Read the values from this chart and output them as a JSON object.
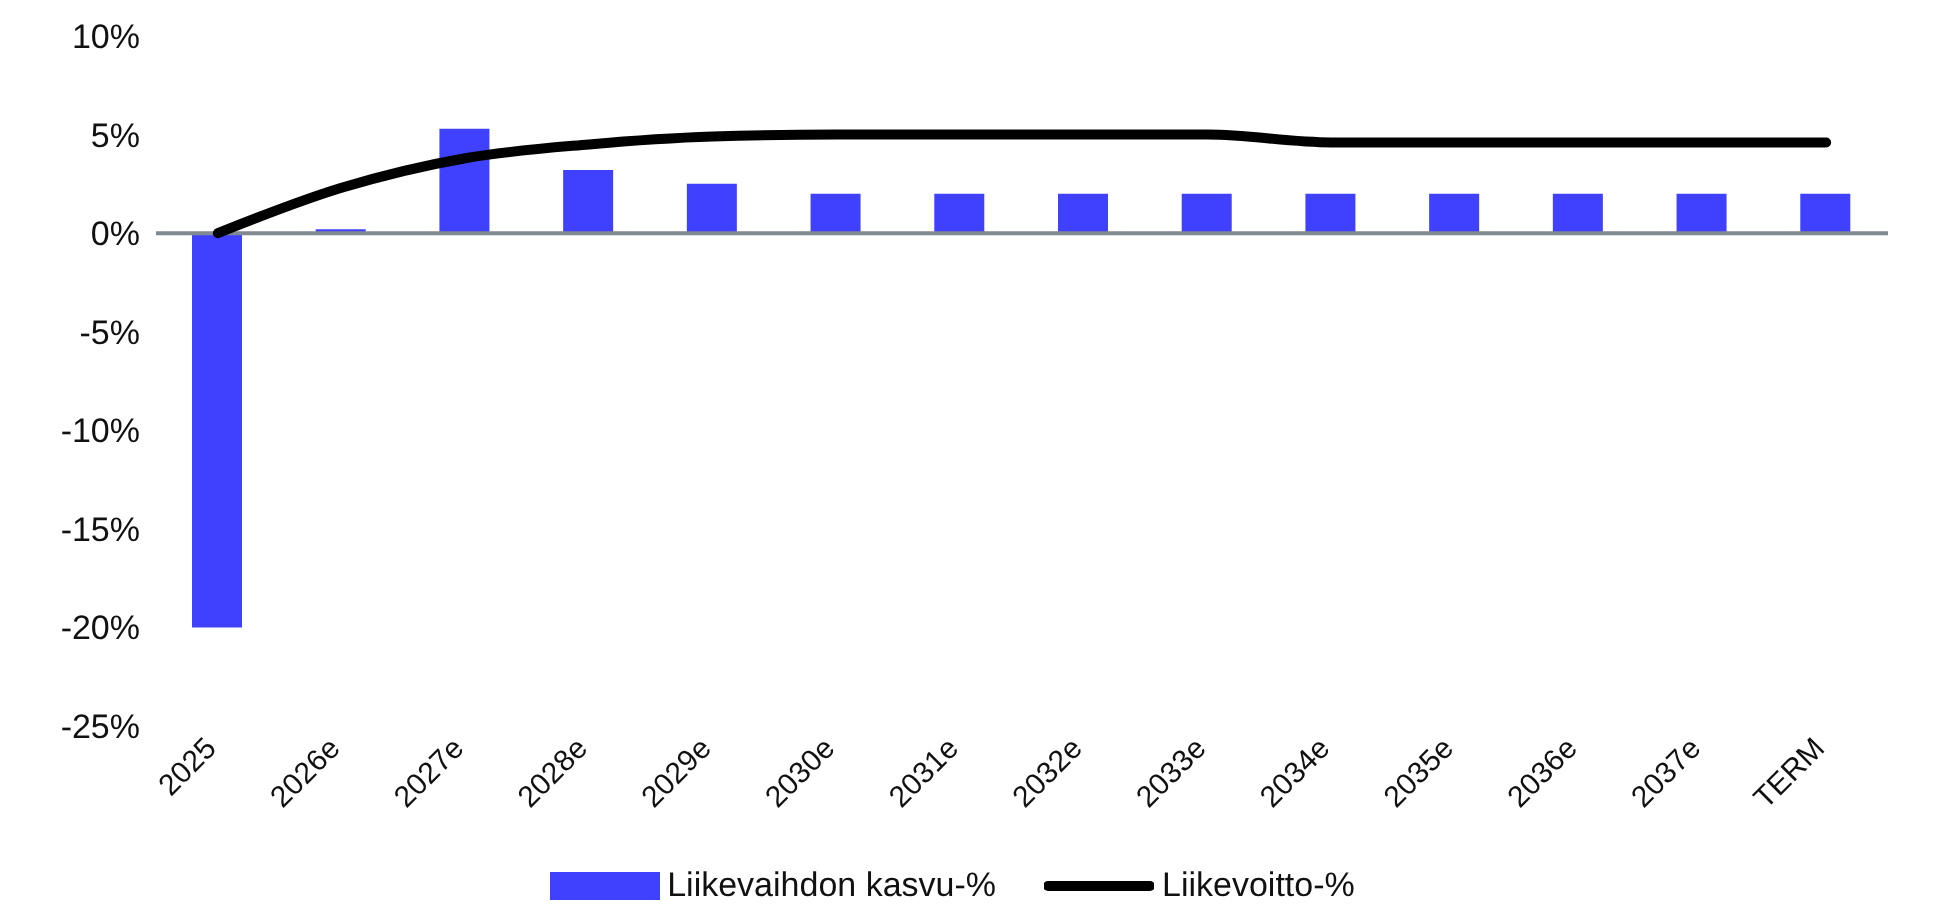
{
  "chart_data": {
    "type": "bar",
    "categories": [
      "2025",
      "2026e",
      "2027e",
      "2028e",
      "2029e",
      "2030e",
      "2031e",
      "2032e",
      "2033e",
      "2034e",
      "2035e",
      "2036e",
      "2037e",
      "TERM"
    ],
    "series": [
      {
        "name": "Liikevaihdon kasvu-%",
        "color": "#4040ff",
        "values": [
          -20,
          0.2,
          5.3,
          3.2,
          2.5,
          2.0,
          2.0,
          2.0,
          2.0,
          2.0,
          2.0,
          2.0,
          2.0,
          2.0
        ]
      },
      {
        "name": "Liikevoitto-%",
        "type": "line",
        "color": "#000000",
        "values": [
          0,
          2.3,
          3.8,
          4.5,
          4.9,
          5.0,
          5.0,
          5.0,
          5.0,
          4.6,
          4.6,
          4.6,
          4.6,
          4.6
        ]
      }
    ],
    "ylim": [
      -25,
      10
    ],
    "yticks": [
      {
        "value": -25,
        "label": "-25%"
      },
      {
        "value": -20,
        "label": "-20%"
      },
      {
        "value": -15,
        "label": "-15%"
      },
      {
        "value": -10,
        "label": "-10%"
      },
      {
        "value": -5,
        "label": "-5%"
      },
      {
        "value": 0,
        "label": "0%"
      },
      {
        "value": 5,
        "label": "5%"
      },
      {
        "value": 10,
        "label": "10%"
      }
    ],
    "ref_lines": [
      {
        "axis": "y",
        "value": 0,
        "color": "#808890"
      }
    ],
    "grid": false,
    "legend": "bottom",
    "marker": "none"
  }
}
